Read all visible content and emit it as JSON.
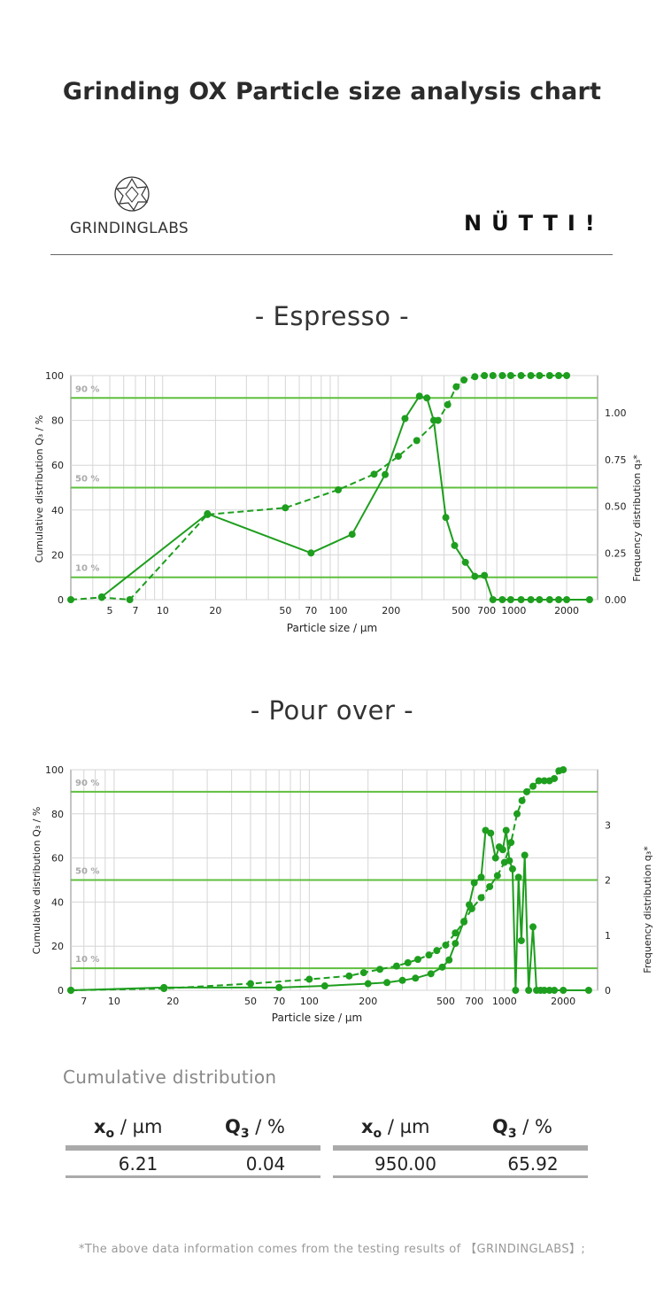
{
  "page_title": "Grinding OX Particle size analysis chart",
  "brands": {
    "left_name": "GRINDINGLABS",
    "right_name": "NÜTTI!"
  },
  "colors": {
    "accent_green": "#1e9e1e",
    "grid": "#d6d6d6",
    "band_green": "#5fbf3f"
  },
  "sections": {
    "espresso_title": "- Espresso -",
    "pourover_title": "- Pour over -"
  },
  "chart_data": [
    {
      "id": "espresso",
      "type": "line",
      "xlabel": "Particle size / µm",
      "ylabel_left": "Cumulative distribution  Q₃ / %",
      "ylabel_right": "Frequency distribution  q₃*",
      "x_scale": "log",
      "xlim": [
        3,
        3000
      ],
      "ylim_left": [
        0,
        100
      ],
      "ylim_right": [
        0,
        1.2
      ],
      "x_ticks": [
        5,
        7,
        10,
        20,
        50,
        70,
        100,
        200,
        500,
        700,
        1000,
        2000
      ],
      "y_ticks_left": [
        0,
        20,
        40,
        60,
        80,
        100
      ],
      "y_ticks_right": [
        0.0,
        0.25,
        0.5,
        0.75,
        1.0
      ],
      "reference_lines": [
        {
          "label": "90 %",
          "y": 90
        },
        {
          "label": "50 %",
          "y": 50
        },
        {
          "label": "10 %",
          "y": 10
        }
      ],
      "grid": true,
      "series": [
        {
          "role": "cumulative",
          "axis": "left",
          "style": "dashed",
          "x": [
            3,
            4.5,
            6.5,
            18,
            50,
            100,
            160,
            220,
            280,
            370,
            420,
            470,
            520,
            600,
            680,
            760,
            860,
            960,
            1100,
            1250,
            1400,
            1600,
            1800,
            2000
          ],
          "y": [
            0,
            1,
            0,
            38,
            41,
            49,
            56,
            64,
            71,
            80,
            87,
            95,
            98,
            99.5,
            100,
            100,
            100,
            100,
            100,
            100,
            100,
            100,
            100,
            100
          ]
        },
        {
          "role": "frequency",
          "axis": "right",
          "style": "solid",
          "x": [
            4.5,
            18,
            70,
            120,
            185,
            240,
            290,
            320,
            350,
            410,
            460,
            530,
            600,
            680,
            760,
            860,
            960,
            1100,
            1250,
            1400,
            1600,
            1800,
            2000,
            2700
          ],
          "y": [
            0.015,
            0.46,
            0.25,
            0.35,
            0.67,
            0.97,
            1.09,
            1.08,
            0.96,
            0.44,
            0.29,
            0.2,
            0.125,
            0.13,
            0,
            0,
            0,
            0,
            0,
            0,
            0,
            0,
            0,
            0
          ]
        }
      ]
    },
    {
      "id": "pourover",
      "type": "line",
      "xlabel": "Particle size / µm",
      "ylabel_left": "Cumulative distribution Q₃ / %",
      "ylabel_right": "Frequency distribution  q₃*",
      "x_scale": "log",
      "xlim": [
        6,
        3000
      ],
      "ylim_left": [
        0,
        100
      ],
      "ylim_right": [
        0,
        4
      ],
      "x_ticks": [
        7,
        10,
        20,
        50,
        70,
        100,
        200,
        500,
        700,
        1000,
        2000
      ],
      "y_ticks_left": [
        0,
        20,
        40,
        60,
        80,
        100
      ],
      "y_ticks_right": [
        0,
        1,
        2,
        3
      ],
      "reference_lines": [
        {
          "label": "90 %",
          "y": 90
        },
        {
          "label": "50 %",
          "y": 50
        },
        {
          "label": "10 %",
          "y": 10
        }
      ],
      "grid": true,
      "series": [
        {
          "role": "cumulative",
          "axis": "left",
          "style": "dashed",
          "x": [
            6,
            18,
            50,
            100,
            160,
            190,
            230,
            280,
            320,
            360,
            410,
            450,
            500,
            560,
            620,
            680,
            760,
            840,
            920,
            1000,
            1080,
            1160,
            1230,
            1300,
            1400,
            1500,
            1600,
            1700,
            1800,
            1900,
            2000
          ],
          "y": [
            0,
            0.8,
            3,
            5,
            6.5,
            8,
            9.5,
            11,
            12.5,
            14,
            16,
            18,
            20.5,
            26,
            31,
            37,
            42,
            47,
            52,
            58,
            67,
            80,
            86,
            90,
            92.5,
            95,
            95,
            95,
            96,
            99.5,
            100
          ]
        },
        {
          "role": "frequency",
          "axis": "right",
          "style": "solid",
          "x": [
            6,
            18,
            70,
            120,
            200,
            250,
            300,
            350,
            420,
            480,
            520,
            560,
            620,
            660,
            700,
            760,
            800,
            850,
            900,
            940,
            980,
            1020,
            1060,
            1100,
            1140,
            1180,
            1220,
            1270,
            1330,
            1400,
            1460,
            1530,
            1600,
            1700,
            1800,
            2000,
            2700
          ],
          "y": [
            0,
            0.05,
            0.05,
            0.08,
            0.12,
            0.14,
            0.18,
            0.22,
            0.3,
            0.42,
            0.55,
            0.85,
            1.25,
            1.55,
            1.95,
            2.05,
            2.9,
            2.85,
            2.4,
            2.6,
            2.55,
            2.9,
            2.35,
            2.2,
            0,
            2.05,
            0.9,
            2.45,
            0,
            1.15,
            0,
            0,
            0,
            0,
            0,
            0,
            0
          ]
        }
      ]
    }
  ],
  "table": {
    "title": "Cumulative distribution",
    "header_x_symbol": "x",
    "header_x_sub": "o",
    "header_x_unit": " / µm",
    "header_q_symbol": "Q",
    "header_q_sub": "3",
    "header_q_unit": " / %",
    "left": {
      "x": "6.21",
      "q": "0.04"
    },
    "right": {
      "x": "950.00",
      "q": "65.92"
    }
  },
  "footnote": "*The above data information comes from the testing results of 【GRINDINGLABS】;"
}
